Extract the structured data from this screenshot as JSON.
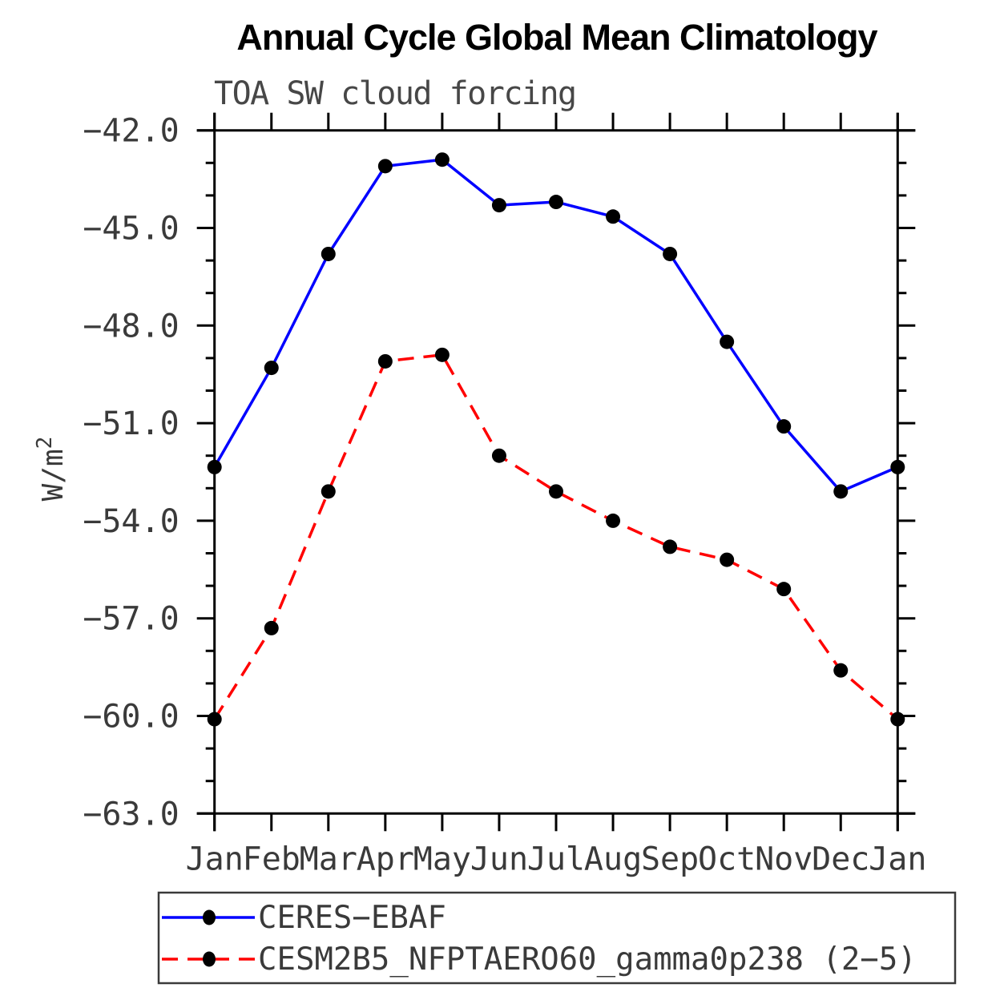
{
  "header": {
    "title": "Annual Cycle Global Mean Climatology",
    "subtitle": "TOA SW cloud forcing"
  },
  "axis": {
    "ylabel_base": "W/m",
    "ylabel_exp": "2"
  },
  "chart_data": {
    "type": "line",
    "title": "Annual Cycle Global Mean Climatology",
    "subtitle": "TOA SW cloud forcing",
    "ylabel": "W/m^2",
    "xlabel": "",
    "categories": [
      "Jan",
      "Feb",
      "Mar",
      "Apr",
      "May",
      "Jun",
      "Jul",
      "Aug",
      "Sep",
      "Oct",
      "Nov",
      "Dec",
      "Jan"
    ],
    "ylim": [
      -63.0,
      -42.0
    ],
    "ytick_interval_major": 3.0,
    "ytick_interval_minor": 1.0,
    "ytick_labels": [
      "−42.0",
      "−45.0",
      "−48.0",
      "−51.0",
      "−54.0",
      "−57.0",
      "−60.0",
      "−63.0"
    ],
    "grid": false,
    "legend_position": "below-plot",
    "series": [
      {
        "name": "CERES−EBAF",
        "color": "#0000ff",
        "line_style": "solid",
        "marker": "filled-circle",
        "marker_color": "#000000",
        "values": [
          -52.35,
          -49.3,
          -45.8,
          -43.1,
          -42.9,
          -44.3,
          -44.2,
          -44.65,
          -45.8,
          -48.5,
          -51.1,
          -53.1,
          -52.35
        ]
      },
      {
        "name": "CESM2B5_NFPTAERO60_gamma0p238 (2−5)",
        "color": "#ff0000",
        "line_style": "dashed",
        "marker": "filled-circle",
        "marker_color": "#000000",
        "values": [
          -60.1,
          -57.3,
          -53.1,
          -49.1,
          -48.9,
          -52.0,
          -53.1,
          -54.0,
          -54.8,
          -55.2,
          -56.1,
          -58.6,
          -60.1
        ]
      }
    ]
  }
}
